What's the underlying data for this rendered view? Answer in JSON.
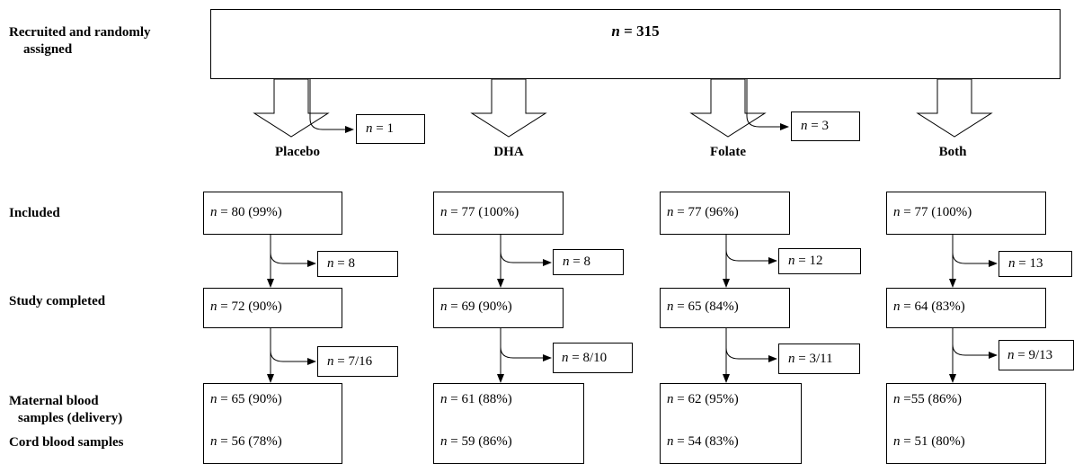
{
  "row_labels": {
    "recruited_line1": "Recruited and randomly",
    "recruited_line2": "assigned",
    "included": "Included",
    "completed": "Study completed",
    "maternal_line1": "Maternal blood",
    "maternal_line2": "samples (delivery)",
    "cord": "Cord blood samples"
  },
  "top": {
    "n_prefix": "n",
    "n_rest": " = 315"
  },
  "excluded_after_randomization": [
    {
      "n_prefix": "n",
      "n_rest": " = 1"
    },
    {
      "n_prefix": "n",
      "n_rest": " = 3"
    }
  ],
  "arms": [
    {
      "name": "Placebo",
      "included": {
        "n_prefix": "n",
        "n_rest": " = 80 (99%)"
      },
      "lost_included": {
        "n_prefix": "n",
        "n_rest": " = 8"
      },
      "completed": {
        "n_prefix": "n",
        "n_rest": " = 72 (90%)"
      },
      "lost_samples": {
        "n_prefix": "n",
        "n_rest": " = 7/16"
      },
      "maternal": {
        "n_prefix": "n",
        "n_rest": " = 65 (90%)"
      },
      "cord": {
        "n_prefix": "n",
        "n_rest": " = 56 (78%)"
      }
    },
    {
      "name": "DHA",
      "included": {
        "n_prefix": "n",
        "n_rest": " = 77 (100%)"
      },
      "lost_included": {
        "n_prefix": "n",
        "n_rest": " = 8"
      },
      "completed": {
        "n_prefix": "n",
        "n_rest": " = 69 (90%)"
      },
      "lost_samples": {
        "n_prefix": "n",
        "n_rest": " = 8/10"
      },
      "maternal": {
        "n_prefix": "n",
        "n_rest": " = 61 (88%)"
      },
      "cord": {
        "n_prefix": "n",
        "n_rest": " = 59 (86%)"
      }
    },
    {
      "name": "Folate",
      "included": {
        "n_prefix": "n",
        "n_rest": " = 77 (96%)"
      },
      "lost_included": {
        "n_prefix": "n",
        "n_rest": " = 12"
      },
      "completed": {
        "n_prefix": "n",
        "n_rest": " = 65 (84%)"
      },
      "lost_samples": {
        "n_prefix": "n",
        "n_rest": " = 3/11"
      },
      "maternal": {
        "n_prefix": "n",
        "n_rest": " = 62 (95%)"
      },
      "cord": {
        "n_prefix": "n",
        "n_rest": " = 54 (83%)"
      }
    },
    {
      "name": "Both",
      "included": {
        "n_prefix": "n",
        "n_rest": " = 77 (100%)"
      },
      "lost_included": {
        "n_prefix": "n",
        "n_rest": " = 13"
      },
      "completed": {
        "n_prefix": "n",
        "n_rest": " = 64 (83%)"
      },
      "lost_samples": {
        "n_prefix": "n",
        "n_rest": " = 9/13"
      },
      "maternal": {
        "n_prefix": "n",
        "n_rest": " =55 (86%)"
      },
      "cord": {
        "n_prefix": "n",
        "n_rest": " = 51 (80%)"
      }
    }
  ]
}
